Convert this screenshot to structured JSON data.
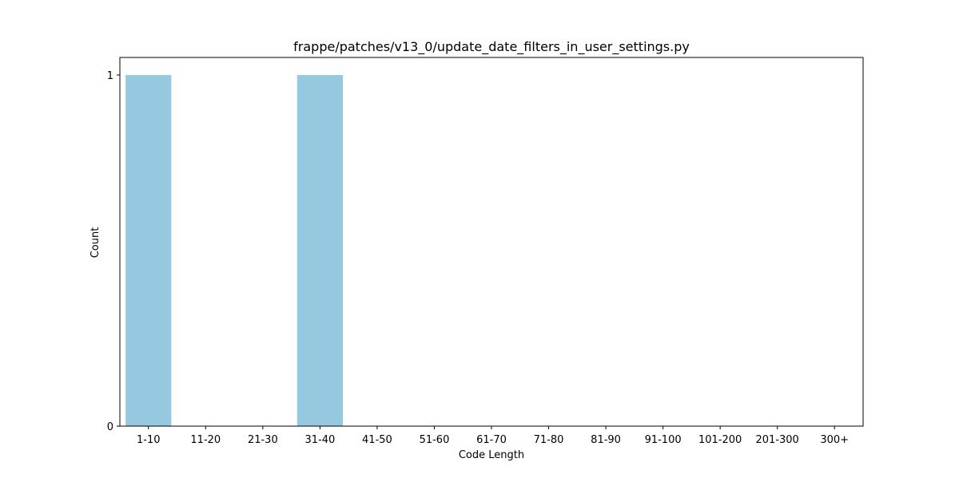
{
  "chart_data": {
    "type": "bar",
    "title": "frappe/patches/v13_0/update_date_filters_in_user_settings.py",
    "xlabel": "Code Length",
    "ylabel": "Count",
    "categories": [
      "1-10",
      "11-20",
      "21-30",
      "31-40",
      "41-50",
      "51-60",
      "61-70",
      "71-80",
      "81-90",
      "91-100",
      "101-200",
      "201-300",
      "300+"
    ],
    "values": [
      1,
      0,
      0,
      1,
      0,
      0,
      0,
      0,
      0,
      0,
      0,
      0,
      0
    ],
    "ylim": [
      0,
      1.05
    ],
    "yticks": [
      0,
      1
    ],
    "bar_color": "#96c9df",
    "grid": false,
    "legend": "none"
  }
}
